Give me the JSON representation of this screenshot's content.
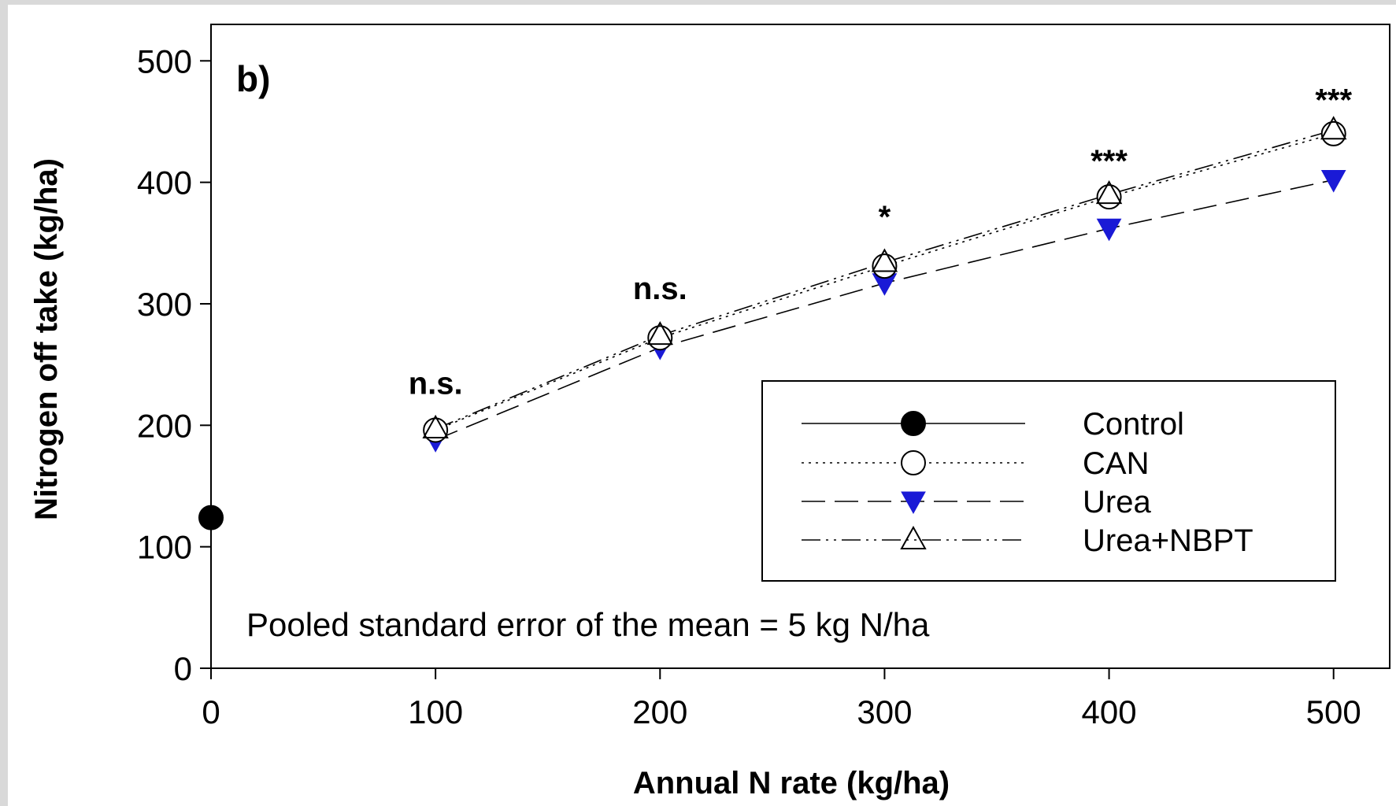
{
  "chart_data": {
    "type": "line",
    "panel_label": "b)",
    "xlabel": "Annual N rate (kg/ha)",
    "ylabel": "Nitrogen off take (kg/ha)",
    "xlim": [
      0,
      525
    ],
    "ylim": [
      0,
      530
    ],
    "x_ticks": [
      0,
      100,
      200,
      300,
      400,
      500
    ],
    "x_tick_labels": [
      "0",
      "100",
      "200",
      "300",
      "400",
      "500"
    ],
    "y_ticks": [
      0,
      100,
      200,
      300,
      400,
      500
    ],
    "y_tick_labels": [
      "0",
      "100",
      "200",
      "300",
      "400",
      "500"
    ],
    "grid": false,
    "legend_position": "center-right",
    "series": [
      {
        "name": "Control",
        "marker": "filled-circle",
        "line": "solid",
        "color": "#000000",
        "x": [
          0
        ],
        "y": [
          124
        ]
      },
      {
        "name": "CAN",
        "marker": "open-circle",
        "line": "dotted",
        "color": "#000000",
        "x": [
          100,
          200,
          300,
          400,
          500
        ],
        "y": [
          196,
          272,
          331,
          388,
          440
        ]
      },
      {
        "name": "Urea",
        "marker": "filled-triangle-down",
        "line": "dashed",
        "color": "#1a1ad6",
        "x": [
          100,
          200,
          300,
          400,
          500
        ],
        "y": [
          188,
          264,
          317,
          362,
          402
        ]
      },
      {
        "name": "Urea+NBPT",
        "marker": "open-triangle-up",
        "line": "dash-dot-dot",
        "color": "#000000",
        "x": [
          100,
          200,
          300,
          400,
          500
        ],
        "y": [
          197,
          274,
          334,
          390,
          443
        ]
      }
    ],
    "significance_labels": [
      {
        "x": 100,
        "y": 235,
        "text": "n.s."
      },
      {
        "x": 200,
        "y": 313,
        "text": "n.s."
      },
      {
        "x": 300,
        "y": 372,
        "text": "*"
      },
      {
        "x": 400,
        "y": 418,
        "text": "***"
      },
      {
        "x": 500,
        "y": 468,
        "text": "***"
      }
    ],
    "annotation": "Pooled standard error of the mean = 5 kg N/ha"
  }
}
